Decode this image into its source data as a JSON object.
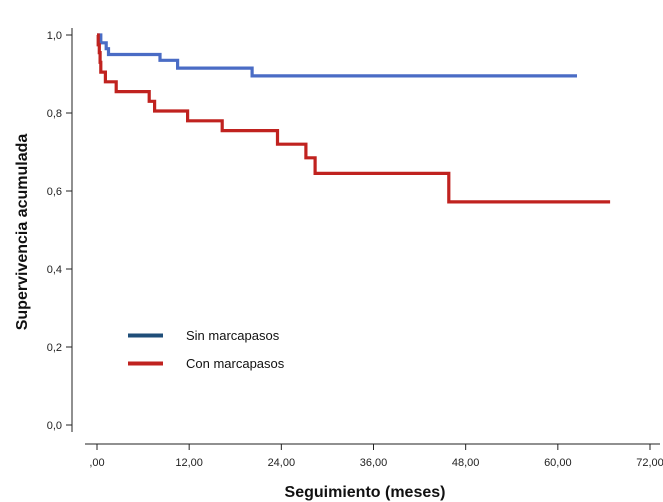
{
  "chart_data": {
    "type": "line",
    "step": true,
    "title": "",
    "xlabel": "Seguimiento (meses)",
    "ylabel": "Supervivencia acumulada",
    "xlim": [
      0,
      72
    ],
    "ylim": [
      0,
      1
    ],
    "x_ticks": [
      0,
      12,
      24,
      36,
      48,
      60,
      72
    ],
    "x_tick_labels": [
      ",00",
      "12,00",
      "24,00",
      "36,00",
      "48,00",
      "60,00",
      "72,00"
    ],
    "y_ticks": [
      0,
      0.2,
      0.4,
      0.6,
      0.8,
      1.0
    ],
    "y_tick_labels": [
      "0,0",
      "0,2",
      "0,4",
      "0,6",
      "0,8",
      "1,0"
    ],
    "grid": false,
    "legend": {
      "placement": "bottom-left"
    },
    "series": [
      {
        "name": "Sin marcapasos",
        "legend_color": "#1f4e79",
        "color": "#4a6cc5",
        "points": [
          [
            0,
            1.0
          ],
          [
            0.5,
            0.98
          ],
          [
            1.2,
            0.965
          ],
          [
            1.5,
            0.95
          ],
          [
            8.2,
            0.935
          ],
          [
            10.5,
            0.915
          ],
          [
            20.2,
            0.895
          ],
          [
            62.5,
            0.895
          ]
        ]
      },
      {
        "name": "Con marcapasos",
        "legend_color": "#c0221f",
        "color": "#c0221f",
        "points": [
          [
            0,
            1.0
          ],
          [
            0.15,
            0.975
          ],
          [
            0.3,
            0.955
          ],
          [
            0.4,
            0.93
          ],
          [
            0.5,
            0.905
          ],
          [
            1.1,
            0.88
          ],
          [
            2.5,
            0.855
          ],
          [
            6.8,
            0.83
          ],
          [
            7.5,
            0.805
          ],
          [
            11.8,
            0.78
          ],
          [
            16.3,
            0.755
          ],
          [
            23.5,
            0.72
          ],
          [
            27.2,
            0.685
          ],
          [
            28.4,
            0.645
          ],
          [
            45.8,
            0.572
          ],
          [
            66.8,
            0.572
          ]
        ]
      }
    ]
  }
}
